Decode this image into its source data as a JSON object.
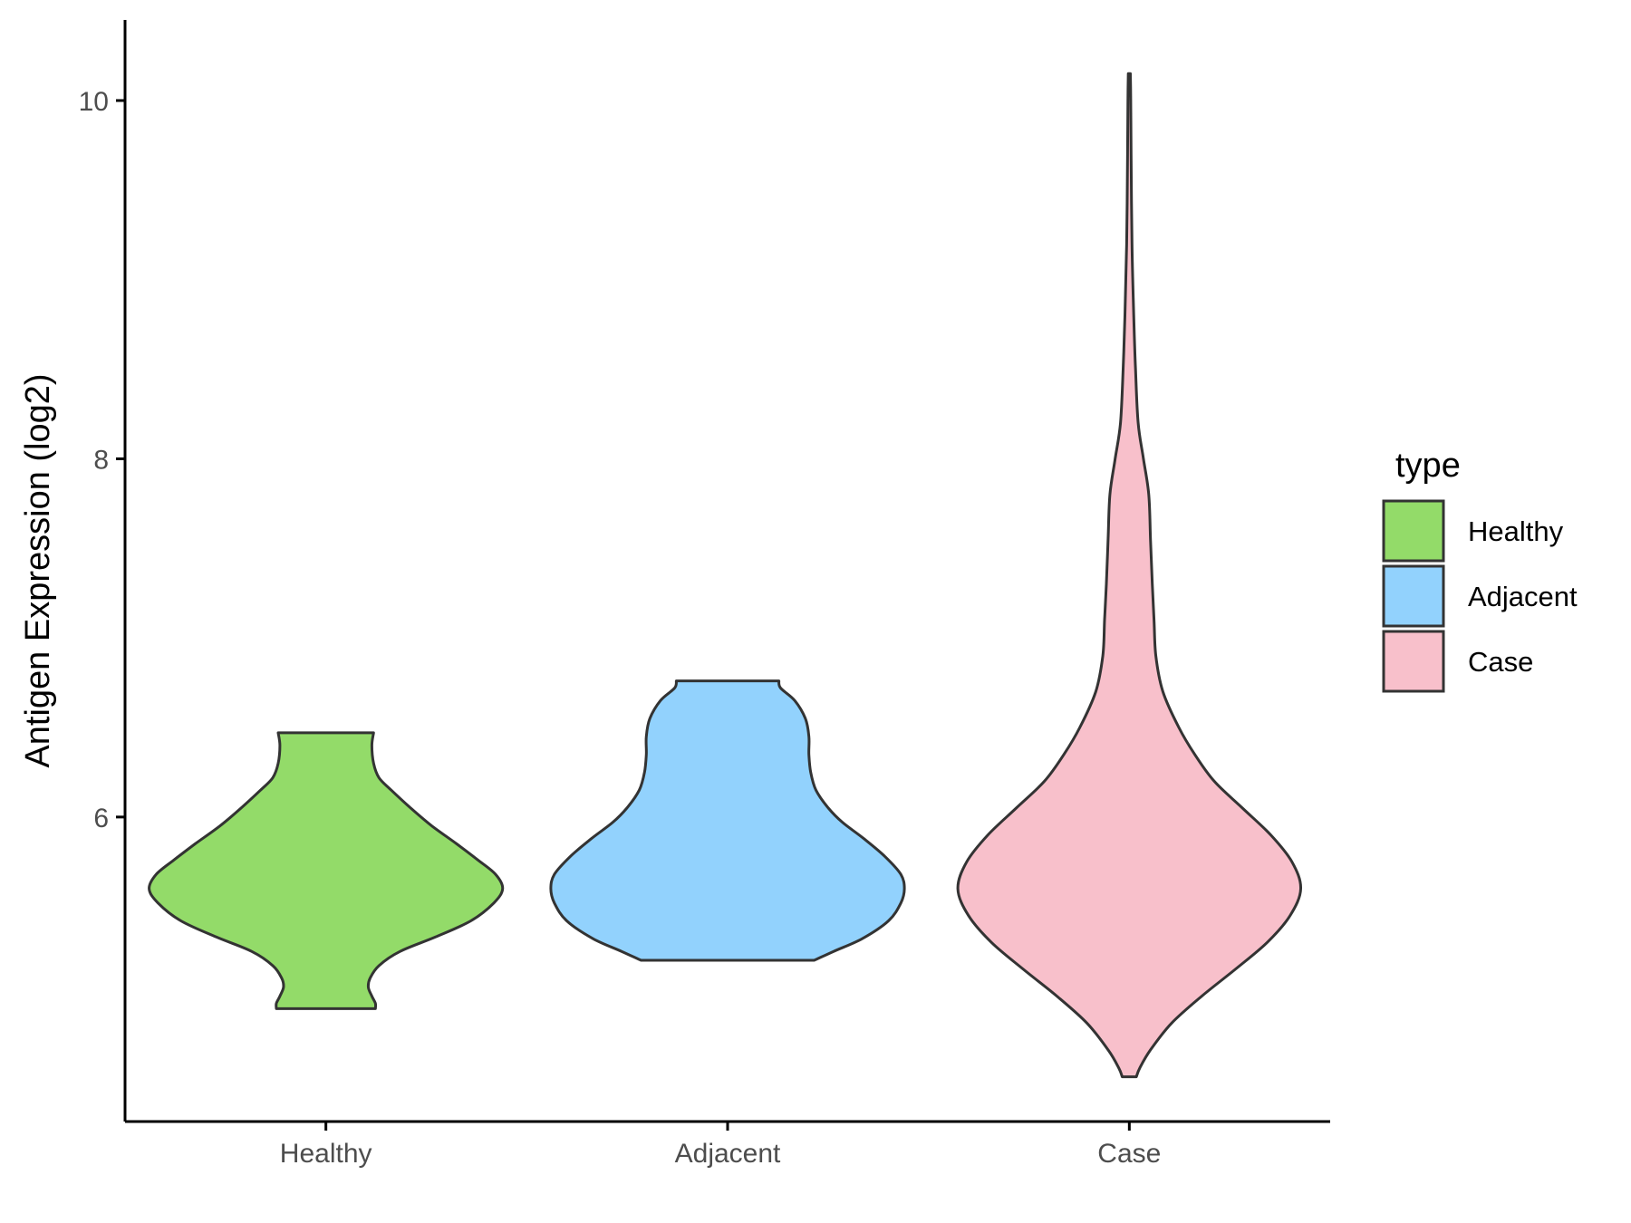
{
  "chart_data": {
    "type": "violin",
    "ylabel": "Antigen Expression (log2)",
    "xlabel": "",
    "categories": [
      "Healthy",
      "Adjacent",
      "Case"
    ],
    "yticks": [
      6,
      8,
      10
    ],
    "ylim": [
      4.3,
      10.45
    ],
    "colors": {
      "Healthy": "#93DB69",
      "Adjacent": "#92D2FD",
      "Case": "#F8C0CB"
    },
    "legend": {
      "title": "type",
      "position": "right",
      "entries": [
        "Healthy",
        "Adjacent",
        "Case"
      ]
    },
    "series": [
      {
        "name": "Healthy",
        "profile": [
          [
            4.93,
            0.28
          ],
          [
            4.96,
            0.28
          ],
          [
            5.0,
            0.26
          ],
          [
            5.05,
            0.24
          ],
          [
            5.1,
            0.25
          ],
          [
            5.17,
            0.3
          ],
          [
            5.25,
            0.42
          ],
          [
            5.33,
            0.62
          ],
          [
            5.42,
            0.82
          ],
          [
            5.52,
            0.95
          ],
          [
            5.6,
            1.0
          ],
          [
            5.68,
            0.96
          ],
          [
            5.76,
            0.86
          ],
          [
            5.85,
            0.74
          ],
          [
            5.95,
            0.6
          ],
          [
            6.05,
            0.48
          ],
          [
            6.15,
            0.37
          ],
          [
            6.22,
            0.3
          ],
          [
            6.3,
            0.27
          ],
          [
            6.4,
            0.26
          ],
          [
            6.47,
            0.27
          ]
        ]
      },
      {
        "name": "Adjacent",
        "profile": [
          [
            5.2,
            0.49
          ],
          [
            5.25,
            0.6
          ],
          [
            5.32,
            0.76
          ],
          [
            5.42,
            0.91
          ],
          [
            5.52,
            0.98
          ],
          [
            5.6,
            1.0
          ],
          [
            5.68,
            0.98
          ],
          [
            5.78,
            0.89
          ],
          [
            5.88,
            0.77
          ],
          [
            5.97,
            0.65
          ],
          [
            6.05,
            0.57
          ],
          [
            6.15,
            0.5
          ],
          [
            6.25,
            0.47
          ],
          [
            6.35,
            0.46
          ],
          [
            6.45,
            0.46
          ],
          [
            6.55,
            0.44
          ],
          [
            6.65,
            0.38
          ],
          [
            6.72,
            0.3
          ],
          [
            6.76,
            0.29
          ]
        ]
      },
      {
        "name": "Case",
        "profile": [
          [
            4.55,
            0.04
          ],
          [
            4.6,
            0.06
          ],
          [
            4.7,
            0.12
          ],
          [
            4.85,
            0.24
          ],
          [
            5.0,
            0.41
          ],
          [
            5.15,
            0.6
          ],
          [
            5.3,
            0.78
          ],
          [
            5.45,
            0.91
          ],
          [
            5.6,
            0.97
          ],
          [
            5.75,
            0.92
          ],
          [
            5.9,
            0.8
          ],
          [
            6.05,
            0.64
          ],
          [
            6.2,
            0.48
          ],
          [
            6.35,
            0.37
          ],
          [
            6.5,
            0.28
          ],
          [
            6.7,
            0.19
          ],
          [
            6.9,
            0.15
          ],
          [
            7.1,
            0.14
          ],
          [
            7.3,
            0.13
          ],
          [
            7.55,
            0.12
          ],
          [
            7.8,
            0.11
          ],
          [
            8.0,
            0.08
          ],
          [
            8.2,
            0.05
          ],
          [
            8.5,
            0.035
          ],
          [
            8.8,
            0.025
          ],
          [
            9.2,
            0.015
          ],
          [
            9.7,
            0.01
          ],
          [
            10.0,
            0.008
          ],
          [
            10.15,
            0.006
          ]
        ]
      }
    ]
  }
}
